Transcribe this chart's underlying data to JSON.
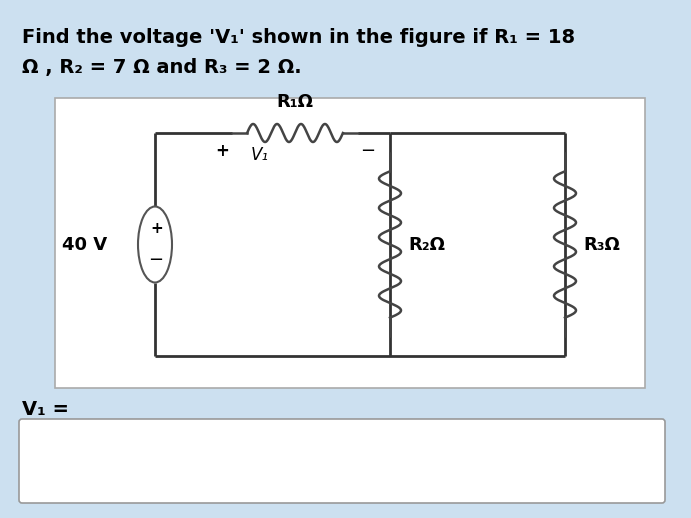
{
  "title_line1": "Find the voltage 'V₁' shown in the figure if R₁ = 18",
  "title_line2": "Ω , R₂ = 7 Ω and R₃ = 2 Ω.",
  "voltage_source": "40 V",
  "r1_label": "R₁Ω",
  "r2_label": "R₂Ω",
  "r3_label": "R₃Ω",
  "v1_label": "V₁ =",
  "plus_sign": "+",
  "minus_sign": "−",
  "v1_node": "V₁",
  "bg_color": "#cce0f0",
  "circuit_bg": "#ffffff",
  "text_color": "#000000",
  "wire_color": "#333333",
  "title_fontsize": 14,
  "label_fontsize": 13
}
